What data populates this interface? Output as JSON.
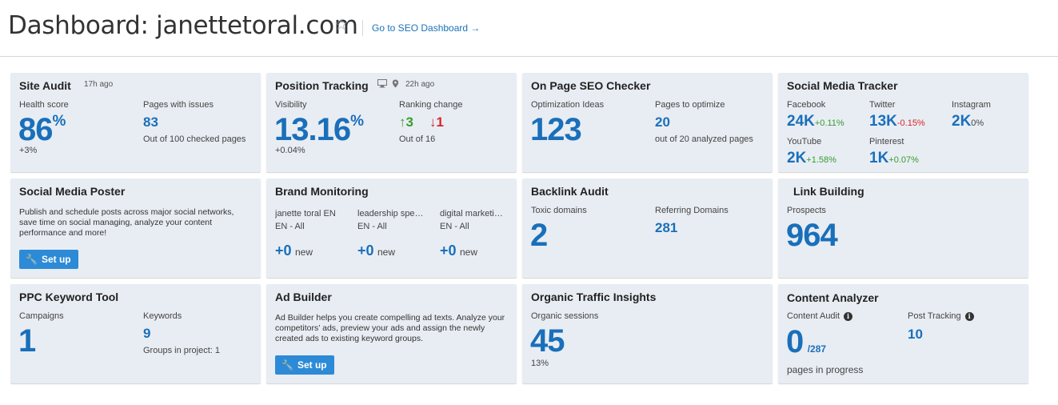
{
  "header": {
    "title": "Dashboard: janettetoral.com",
    "seo_link": "Go to SEO Dashboard →"
  },
  "site_audit": {
    "title": "Site Audit",
    "time": "17h ago",
    "health_label": "Health score",
    "health_value": "86",
    "health_unit": "%",
    "health_change": "+3%",
    "pages_label": "Pages with issues",
    "pages_value": "83",
    "pages_sub": "Out of 100 checked pages"
  },
  "position_tracking": {
    "title": "Position Tracking",
    "time": "22h ago",
    "visibility_label": "Visibility",
    "visibility_value": "13.16",
    "visibility_unit": "%",
    "visibility_change": "+0.04%",
    "ranking_label": "Ranking change",
    "up_value": "3",
    "down_value": "1",
    "ranking_sub": "Out of 16"
  },
  "on_page_seo": {
    "title": "On Page SEO Checker",
    "ideas_label": "Optimization Ideas",
    "ideas_value": "123",
    "pages_label": "Pages to optimize",
    "pages_value": "20",
    "pages_sub": "out of 20 analyzed pages"
  },
  "social_tracker": {
    "title": "Social Media Tracker",
    "items": [
      {
        "name": "Facebook",
        "value": "24K",
        "change": "+0.11%"
      },
      {
        "name": "Twitter",
        "value": "13K",
        "change": "-0.15%"
      },
      {
        "name": "Instagram",
        "value": "2K",
        "change": "0%"
      },
      {
        "name": "YouTube",
        "value": "2K",
        "change": "+1.58%"
      },
      {
        "name": "Pinterest",
        "value": "1K",
        "change": "+0.07%"
      }
    ]
  },
  "social_poster": {
    "title": "Social Media Poster",
    "description": "Publish and schedule posts across major social networks, save time on social managing, analyze your content performance and more!",
    "button": "Set up"
  },
  "brand_monitoring": {
    "title": "Brand Monitoring",
    "items": [
      {
        "name": "janette toral EN",
        "lang": "EN - All",
        "count": "+0",
        "suffix": "new"
      },
      {
        "name": "leadership spe…",
        "lang": "EN - All",
        "count": "+0",
        "suffix": "new"
      },
      {
        "name": "digital marketi…",
        "lang": "EN - All",
        "count": "+0",
        "suffix": "new"
      }
    ]
  },
  "backlink_audit": {
    "title": "Backlink Audit",
    "toxic_label": "Toxic domains",
    "toxic_value": "2",
    "ref_label": "Referring Domains",
    "ref_value": "281"
  },
  "link_building": {
    "title": "Link Building",
    "prospects_label": "Prospects",
    "prospects_value": "964"
  },
  "ppc": {
    "title": "PPC Keyword Tool",
    "campaigns_label": "Campaigns",
    "campaigns_value": "1",
    "keywords_label": "Keywords",
    "keywords_value": "9",
    "groups_text": "Groups in project: 1"
  },
  "ad_builder": {
    "title": "Ad Builder",
    "description": "Ad Builder helps you create compelling ad texts. Analyze your competitors’ ads, preview your ads and assign the newly created ads to existing keyword groups.",
    "button": "Set up"
  },
  "organic_traffic": {
    "title": "Organic Traffic Insights",
    "sessions_label": "Organic sessions",
    "sessions_value": "45",
    "sessions_change": "13%"
  },
  "content_analyzer": {
    "title": "Content Analyzer",
    "audit_label": "Content Audit",
    "audit_value": "0",
    "audit_total": "/287",
    "audit_sub": "pages in progress",
    "post_label": "Post Tracking",
    "post_value": "10"
  },
  "colors": {
    "accent_blue": "#1a6fba",
    "positive": "#3a9a2f",
    "negative": "#d8262b",
    "button": "#2d8ad6",
    "card_bg": "#e8edf3"
  }
}
